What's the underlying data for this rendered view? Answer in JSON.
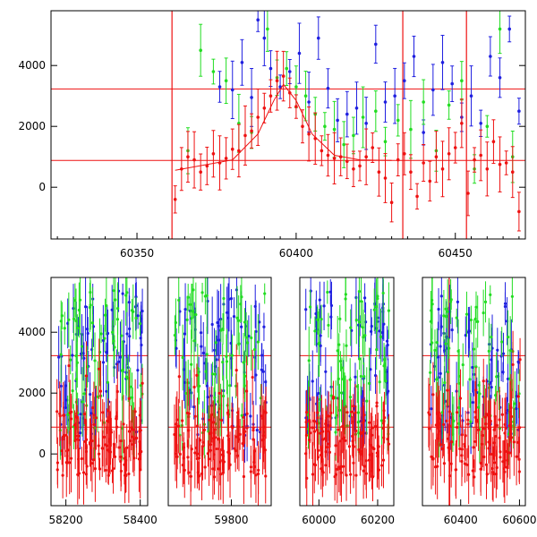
{
  "colors": {
    "blue": "#1f1fe0",
    "green": "#22dd22",
    "red": "#ee1111",
    "fit": "#ee1111",
    "reference": "#ee1111",
    "frame": "#000000"
  },
  "chart_data": [
    {
      "type": "scatter",
      "title": "",
      "xlabel": "",
      "ylabel": "",
      "xlim": [
        60323,
        60472
      ],
      "ylim": [
        -1700,
        5800
      ],
      "xticks": [
        "60350",
        "60400",
        "60450"
      ],
      "xtick_values": [
        60350,
        60400,
        60450
      ],
      "yticks": [
        "0",
        "2000",
        "4000"
      ],
      "ytick_values": [
        0,
        2000,
        4000
      ],
      "hlines": [
        3230,
        880
      ],
      "vlines": [
        60361,
        60433.5,
        60453.5
      ],
      "fit": {
        "x": [
          60362,
          60380,
          60388,
          60393,
          60396,
          60400,
          60405,
          60412,
          60420,
          60430
        ],
        "y": [
          560,
          900,
          1750,
          2850,
          3380,
          2850,
          1750,
          1050,
          900,
          880
        ]
      },
      "series": [
        {
          "color": "blue",
          "x": [
            60376,
            60380,
            60383,
            60386,
            60388,
            60390,
            60392,
            60395,
            60398,
            60401,
            60404,
            60407,
            60410,
            60413,
            60416,
            60419,
            60422,
            60425,
            60428,
            60431,
            60434,
            60437,
            60440,
            60443,
            60446,
            60449,
            60452,
            60455,
            60458,
            60461,
            60464,
            60467,
            60470
          ],
          "y": [
            3300,
            3200,
            4100,
            2950,
            5500,
            4900,
            3900,
            3300,
            3800,
            4400,
            2800,
            4900,
            3250,
            2200,
            2400,
            2600,
            2100,
            4700,
            2800,
            3000,
            3500,
            4300,
            1800,
            3200,
            4100,
            3400,
            2300,
            3000,
            2100,
            4300,
            3600,
            5200,
            2500
          ]
        },
        {
          "color": "green",
          "x": [
            60366,
            60370,
            60374,
            60378,
            60382,
            60386,
            60391,
            60394,
            60397,
            60400,
            60403,
            60406,
            60409,
            60412,
            60415,
            60418,
            60421,
            60425,
            60428,
            60432,
            60436,
            60440,
            60444,
            60448,
            60452,
            60456,
            60460,
            60464,
            60468
          ],
          "y": [
            1200,
            4500,
            3800,
            3500,
            2100,
            1800,
            5200,
            3600,
            3900,
            3300,
            3000,
            2400,
            2000,
            1900,
            1400,
            1700,
            2300,
            2500,
            1500,
            2200,
            1900,
            2800,
            1200,
            2700,
            3500,
            600,
            2000,
            5200,
            1000
          ]
        },
        {
          "color": "red",
          "x": [
            60362,
            60364,
            60366,
            60368,
            60370,
            60372,
            60374,
            60376,
            60378,
            60380,
            60382,
            60384,
            60386,
            60388,
            60390,
            60392,
            60394,
            60396,
            60398,
            60400,
            60402,
            60404,
            60406,
            60408,
            60410,
            60412,
            60414,
            60416,
            60418,
            60420,
            60422,
            60424,
            60426,
            60428,
            60430,
            60432,
            60434,
            60436,
            60438,
            60440,
            60442,
            60444,
            60446,
            60448,
            60450,
            60452,
            60454,
            60456,
            60458,
            60460,
            60462,
            60464,
            60466,
            60468,
            60470
          ],
          "y": [
            -400,
            600,
            1000,
            900,
            500,
            700,
            1100,
            800,
            950,
            1250,
            1200,
            1700,
            1850,
            2300,
            2600,
            3000,
            3500,
            3650,
            3100,
            2650,
            2000,
            1750,
            1600,
            1200,
            1050,
            950,
            1000,
            850,
            600,
            700,
            1000,
            1300,
            500,
            300,
            -500,
            900,
            1100,
            500,
            -300,
            800,
            200,
            1000,
            600,
            1100,
            1300,
            2100,
            -200,
            900,
            1050,
            600,
            1500,
            750,
            800,
            500,
            -800
          ]
        }
      ]
    },
    {
      "type": "scatter",
      "title": "",
      "xlabel": "",
      "ylabel": "",
      "ylim": [
        -1700,
        5800
      ],
      "yticks": [
        "0",
        "2000",
        "4000"
      ],
      "ytick_values": [
        0,
        2000,
        4000
      ],
      "hlines": [
        3230,
        880
      ],
      "vlines": [
        60361
      ],
      "segments": [
        {
          "xlim": [
            58160,
            58420
          ],
          "xticks": [
            "58200",
            "58400"
          ],
          "xtick_values": [
            58200,
            58400
          ]
        },
        {
          "xlim": [
            59610,
            59920
          ],
          "xticks": [
            "59800"
          ],
          "xtick_values": [
            59800
          ]
        },
        {
          "xlim": [
            59935,
            60255
          ],
          "xticks": [
            "60000",
            "60200"
          ],
          "xtick_values": [
            60000,
            60200
          ]
        },
        {
          "xlim": [
            60270,
            60620
          ],
          "xticks": [
            "60400",
            "60600"
          ],
          "xtick_values": [
            60400,
            60600
          ]
        }
      ]
    }
  ]
}
